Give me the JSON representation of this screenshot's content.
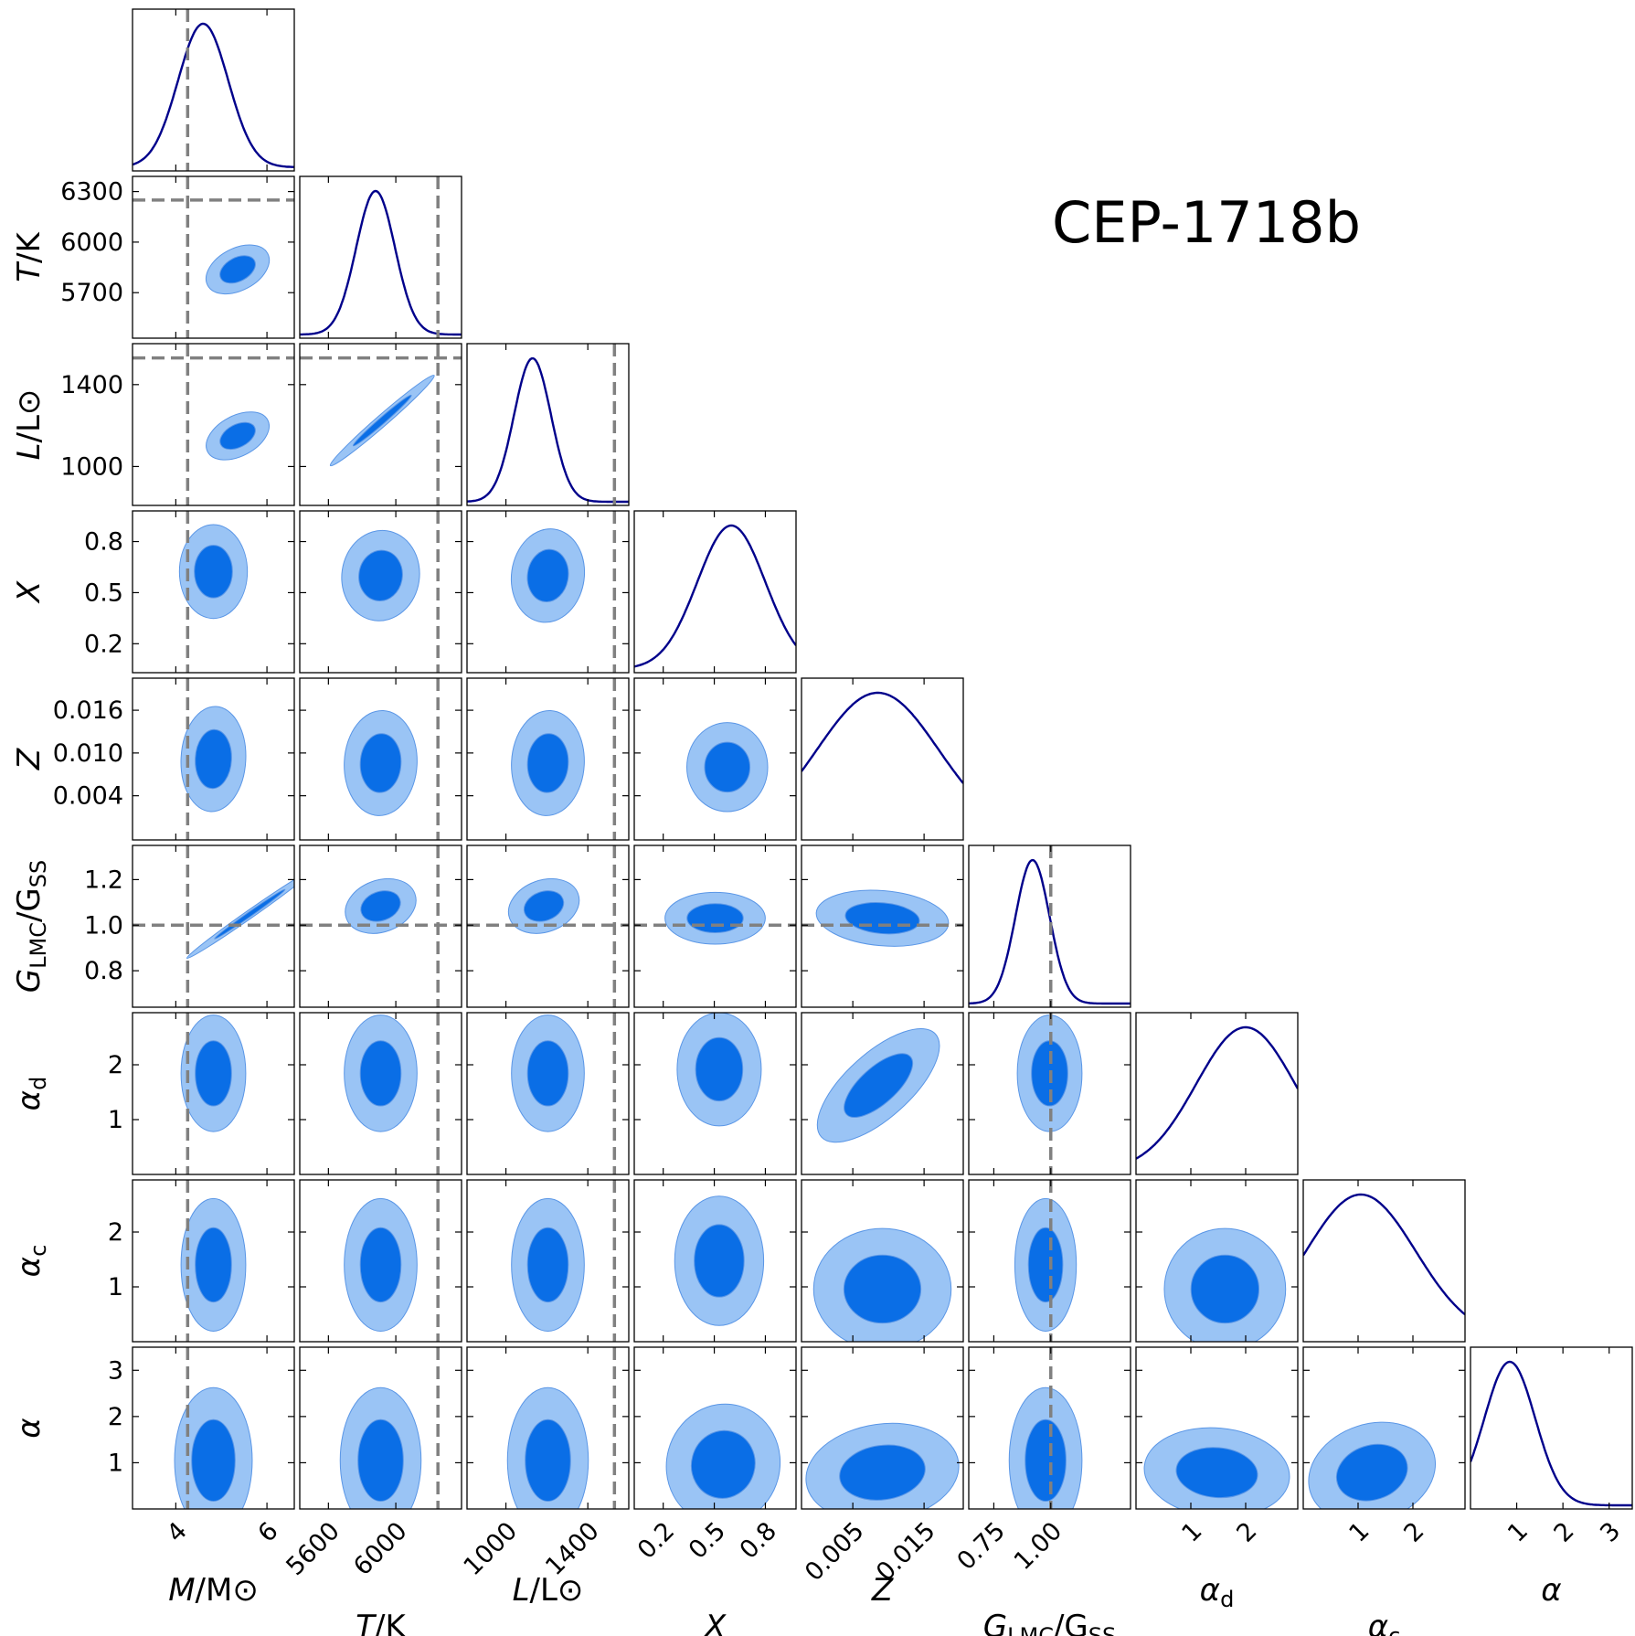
{
  "chart_data": {
    "type": "corner",
    "title": "CEP-1718b",
    "parameters": [
      {
        "key": "M",
        "axis_label": "M/M⊙",
        "label_main": "M",
        "label_sub": "",
        "label_rest": "/M⊙",
        "range": [
          3.05,
          6.6
        ],
        "ticks": [
          4,
          6
        ],
        "tick_labels": [
          "4",
          "6"
        ],
        "peak": 4.6,
        "sigma": 0.55,
        "reference": 4.26
      },
      {
        "key": "T",
        "axis_label": "T/K",
        "label_main": "T",
        "label_sub": "",
        "label_rest": "/K",
        "range": [
          5430,
          6390
        ],
        "ticks": [
          5700,
          6000,
          6300
        ],
        "tick_labels": [
          "5700",
          "6000",
          "6300"
        ],
        "xticks": [
          5600,
          6000
        ],
        "xtick_labels": [
          "5600",
          "6000"
        ],
        "peak": 5880,
        "sigma": 115,
        "reference": 6250
      },
      {
        "key": "L",
        "axis_label": "L/L⊙",
        "label_main": "L",
        "label_sub": "",
        "label_rest": "/L⊙",
        "range": [
          810,
          1600
        ],
        "ticks": [
          1000,
          1400
        ],
        "tick_labels": [
          "1000",
          "1400"
        ],
        "peak": 1130,
        "sigma": 90,
        "reference": 1530
      },
      {
        "key": "X",
        "axis_label": "X",
        "label_main": "X",
        "label_sub": "",
        "label_rest": "",
        "range": [
          0.03,
          0.98
        ],
        "ticks": [
          0.2,
          0.5,
          0.8
        ],
        "tick_labels": [
          "0.2",
          "0.5",
          "0.8"
        ],
        "peak": 0.6,
        "sigma": 0.2
      },
      {
        "key": "Z",
        "axis_label": "Z",
        "label_main": "Z",
        "label_sub": "",
        "label_rest": "",
        "range": [
          -0.0022,
          0.0205
        ],
        "ticks": [
          0.004,
          0.01,
          0.016
        ],
        "tick_labels": [
          "0.004",
          "0.010",
          "0.016"
        ],
        "xticks": [
          0.005,
          0.015
        ],
        "xtick_labels": [
          "0.005",
          "0.015"
        ],
        "peak": 0.0085,
        "sigma": 0.0085
      },
      {
        "key": "G",
        "axis_label": "G_LMC/G_SS",
        "label_main": "G",
        "label_sub": "LMC",
        "label_rest": "/G",
        "label_sub2": "SS",
        "range": [
          0.64,
          1.35
        ],
        "ticks": [
          0.8,
          1.0,
          1.2
        ],
        "tick_labels": [
          "0.8",
          "1.0",
          "1.2"
        ],
        "xticks": [
          0.75,
          1.0
        ],
        "xtick_labels": [
          "0.75",
          "1.00"
        ],
        "peak": 0.92,
        "sigma": 0.075,
        "reference": 1.0
      },
      {
        "key": "ad",
        "axis_label": "α_d",
        "label_main": "α",
        "label_sub": "d",
        "label_rest": "",
        "range": [
          0.0,
          2.95
        ],
        "ticks": [
          1,
          2
        ],
        "tick_labels": [
          "1",
          "2"
        ],
        "peak": 2.0,
        "sigma": 0.9
      },
      {
        "key": "ac",
        "axis_label": "α_c",
        "label_main": "α",
        "label_sub": "c",
        "label_rest": "",
        "range": [
          0.0,
          2.95
        ],
        "ticks": [
          1,
          2
        ],
        "tick_labels": [
          "1",
          "2"
        ],
        "peak": 1.05,
        "sigma": 1.0
      },
      {
        "key": "a",
        "axis_label": "α",
        "label_main": "α",
        "label_sub": "",
        "label_rest": "",
        "range": [
          0.0,
          3.5
        ],
        "ticks": [
          1,
          2,
          3
        ],
        "tick_labels": [
          "1",
          "2",
          "3"
        ],
        "peak": 0.85,
        "sigma": 0.55
      }
    ],
    "contour_levels": [
      "68%",
      "95%"
    ],
    "colors": {
      "line": "#00008b",
      "inner": "#0a6ee6",
      "outer": "#9ac4f5",
      "edge": "#5a96e6",
      "reference": "#808080"
    }
  }
}
